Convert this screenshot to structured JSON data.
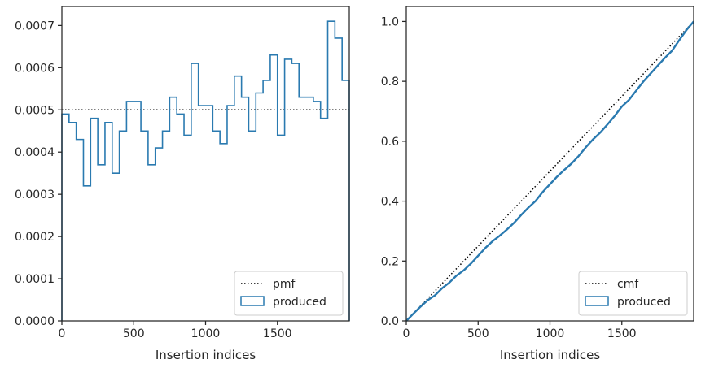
{
  "chart_data": [
    {
      "type": "step",
      "xlabel": "Insertion indices",
      "ylabel": "",
      "xlim": [
        0,
        2000
      ],
      "ylim": [
        0,
        0.000745
      ],
      "xticks": [
        0,
        500,
        1000,
        1500
      ],
      "xtick_labels": [
        "0",
        "500",
        "1000",
        "1500"
      ],
      "yticks": [
        0,
        0.0001,
        0.0002,
        0.0003,
        0.0004,
        0.0005,
        0.0006,
        0.0007
      ],
      "ytick_labels": [
        "0.0000",
        "0.0001",
        "0.0002",
        "0.0003",
        "0.0004",
        "0.0005",
        "0.0006",
        "0.0007"
      ],
      "legend_position": "lower-right",
      "reference": {
        "name": "pmf",
        "value": 0.0005,
        "style": "dotted",
        "color": "#000000"
      },
      "series": [
        {
          "name": "produced",
          "color": "#2a7ab0",
          "bin_edges": [
            0,
            50,
            100,
            150,
            200,
            250,
            300,
            350,
            400,
            450,
            500,
            550,
            600,
            650,
            700,
            750,
            800,
            850,
            900,
            950,
            1000,
            1050,
            1100,
            1150,
            1200,
            1250,
            1300,
            1350,
            1400,
            1450,
            1500,
            1550,
            1600,
            1650,
            1700,
            1750,
            1800,
            1850,
            1900,
            1950,
            2000
          ],
          "values": [
            0.00049,
            0.00047,
            0.00043,
            0.00032,
            0.00048,
            0.00037,
            0.00047,
            0.00035,
            0.00045,
            0.00052,
            0.00052,
            0.00045,
            0.00037,
            0.00041,
            0.00045,
            0.00053,
            0.00049,
            0.00044,
            0.00061,
            0.00051,
            0.00051,
            0.00045,
            0.00042,
            0.00051,
            0.00058,
            0.00053,
            0.00045,
            0.00054,
            0.00057,
            0.00063,
            0.00044,
            0.00062,
            0.00061,
            0.00053,
            0.00053,
            0.00052,
            0.00048,
            0.00071,
            0.00067,
            0.00057
          ]
        }
      ]
    },
    {
      "type": "line",
      "xlabel": "Insertion indices",
      "ylabel": "",
      "xlim": [
        0,
        2000
      ],
      "ylim": [
        0,
        1.05
      ],
      "xticks": [
        0,
        500,
        1000,
        1500
      ],
      "xtick_labels": [
        "0",
        "500",
        "1000",
        "1500"
      ],
      "yticks": [
        0,
        0.2,
        0.4,
        0.6,
        0.8,
        1.0
      ],
      "ytick_labels": [
        "0.0",
        "0.2",
        "0.4",
        "0.6",
        "0.8",
        "1.0"
      ],
      "legend_position": "lower-right",
      "reference": {
        "name": "cmf",
        "x": [
          0,
          2000
        ],
        "y": [
          0,
          1.0
        ],
        "style": "dotted",
        "color": "#000000"
      },
      "series": [
        {
          "name": "produced",
          "color": "#2a7ab0",
          "x": [
            0,
            50,
            100,
            150,
            200,
            250,
            300,
            350,
            400,
            450,
            500,
            550,
            600,
            650,
            700,
            750,
            800,
            850,
            900,
            950,
            1000,
            1050,
            1100,
            1150,
            1200,
            1250,
            1300,
            1350,
            1400,
            1450,
            1500,
            1550,
            1600,
            1650,
            1700,
            1750,
            1800,
            1850,
            1900,
            1950,
            2000
          ],
          "y": [
            0,
            0.0245,
            0.048,
            0.0695,
            0.0855,
            0.1095,
            0.128,
            0.1515,
            0.169,
            0.1915,
            0.2175,
            0.2435,
            0.266,
            0.2845,
            0.305,
            0.3275,
            0.354,
            0.3785,
            0.4005,
            0.431,
            0.4565,
            0.482,
            0.5045,
            0.5255,
            0.551,
            0.58,
            0.6065,
            0.629,
            0.656,
            0.6845,
            0.716,
            0.738,
            0.769,
            0.7995,
            0.826,
            0.8525,
            0.8785,
            0.9025,
            0.938,
            0.9715,
            1.0
          ]
        }
      ]
    }
  ]
}
